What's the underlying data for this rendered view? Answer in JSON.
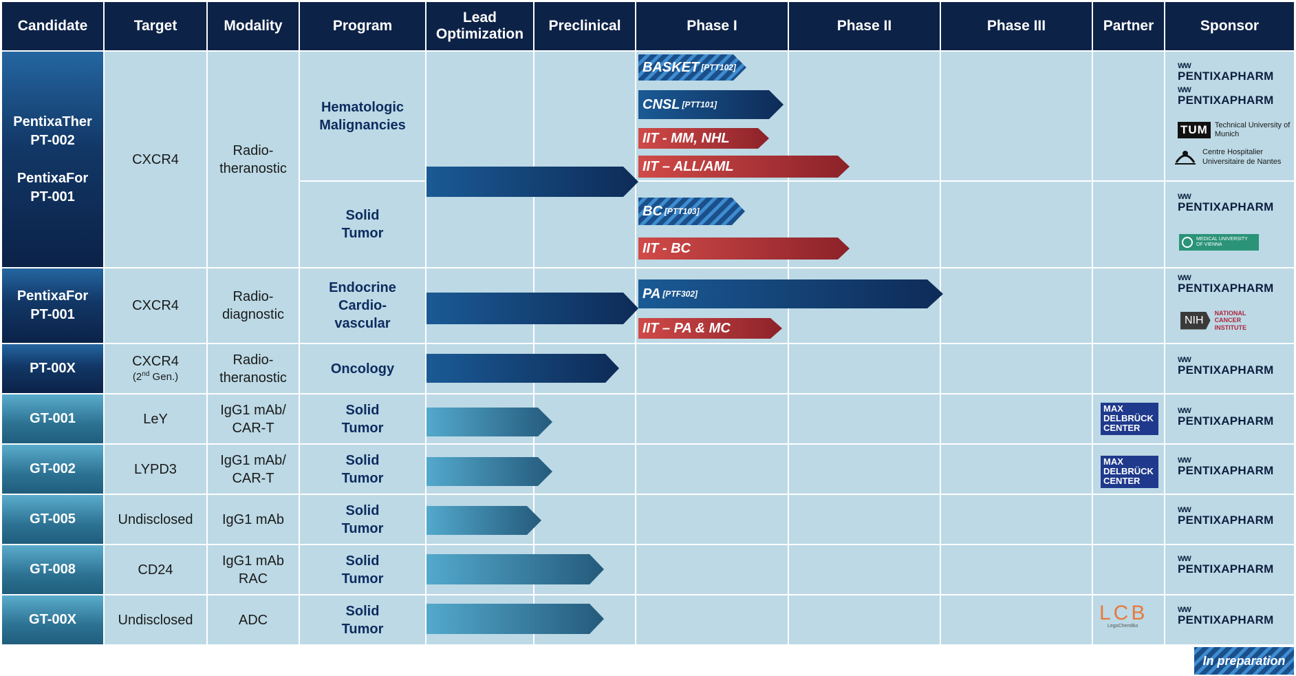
{
  "colors": {
    "header_bg": "#0d2247",
    "cell_bg": "#bcd9e5",
    "dark_bar": "#123e73",
    "light_bar": "#4ba5c8",
    "iit_red": "#b63336",
    "program_text": "#0d2b5e"
  },
  "headers": {
    "candidate": "Candidate",
    "target": "Target",
    "modality": "Modality",
    "program": "Program",
    "lead_opt_1": "Lead",
    "lead_opt_2": "Optimization",
    "preclinical": "Preclinical",
    "phase1": "Phase I",
    "phase2": "Phase II",
    "phase3": "Phase III",
    "partner": "Partner",
    "sponsor": "Sponsor"
  },
  "rows": {
    "r1": {
      "cand_a1": "PentixaTher",
      "cand_a2": "PT-002",
      "cand_b1": "PentixaFor",
      "cand_b2": "PT-001",
      "target": "CXCR4",
      "modality_1": "Radio-",
      "modality_2": "theranostic",
      "program_a1": "Hematologic",
      "program_a2": "Malignancies",
      "program_b1": "Solid",
      "program_b2": "Tumor"
    },
    "r2": {
      "cand_1": "PentixaFor",
      "cand_2": "PT-001",
      "target": "CXCR4",
      "modality_1": "Radio-",
      "modality_2": "diagnostic",
      "program_1": "Endocrine",
      "program_2": "Cardio-",
      "program_3": "vascular"
    },
    "r3": {
      "cand": "PT-00X",
      "target_1": "CXCR4",
      "target_2a": "(2",
      "target_2sup": "nd",
      "target_2b": " Gen.)",
      "modality_1": "Radio-",
      "modality_2": "theranostic",
      "program": "Oncology"
    },
    "r4": {
      "cand": "GT-001",
      "target": "LeY",
      "modality_1": "IgG1 mAb/",
      "modality_2": "CAR-T",
      "program_1": "Solid",
      "program_2": "Tumor"
    },
    "r5": {
      "cand": "GT-002",
      "target": "LYPD3",
      "modality_1": "IgG1 mAb/",
      "modality_2": "CAR-T",
      "program_1": "Solid",
      "program_2": "Tumor"
    },
    "r6": {
      "cand": "GT-005",
      "target": "Undisclosed",
      "modality_1": "IgG1 mAb",
      "program_1": "Solid",
      "program_2": "Tumor"
    },
    "r7": {
      "cand": "GT-008",
      "target": "CD24",
      "modality_1": "IgG1 mAb",
      "modality_2": "RAC",
      "program_1": "Solid",
      "program_2": "Tumor"
    },
    "r8": {
      "cand": "GT-00X",
      "target": "Undisclosed",
      "modality_1": "ADC",
      "program_1": "Solid",
      "program_2": "Tumor"
    }
  },
  "bars": [
    {
      "id": "basket",
      "label": "BASKET",
      "sup": "[PTT102]",
      "style": "hatched",
      "progress_phase": 1.7
    },
    {
      "id": "cnsl",
      "label": "CNSL",
      "sup": "[PTT101]",
      "style": "dark",
      "progress_phase": 2.0
    },
    {
      "id": "iit_mm",
      "label": "IIT  - MM, NHL",
      "sup": "",
      "style": "red",
      "progress_phase": 1.9
    },
    {
      "id": "iit_all",
      "label": "IIT – ALL/AML",
      "sup": "",
      "style": "red",
      "progress_phase": 2.4
    },
    {
      "id": "bc",
      "label": "BC",
      "sup": "[PTT103]",
      "style": "hatched",
      "progress_phase": 1.7
    },
    {
      "id": "iit_bc",
      "label": "IIT - BC",
      "sup": "",
      "style": "red",
      "progress_phase": 2.4
    },
    {
      "id": "pa",
      "label": "PA",
      "sup": "[PTF302]",
      "style": "dark",
      "progress_phase": 3.0
    },
    {
      "id": "iit_pa",
      "label": "IIT – PA & MC",
      "sup": "",
      "style": "red",
      "progress_phase": 2.0
    }
  ],
  "sponsors": {
    "pentixapharm": "PENTIXAPHARM",
    "pentixapharm_mark": "WW",
    "tum_name": "Technical University of Munich",
    "tum_logo": "TUM",
    "chu_name_1": "Centre Hospitalier",
    "chu_name_2": "Universitaire de Nantes",
    "muw_name": "MEDICAL UNIVERSITY OF VIENNA",
    "nih_logo": "NIH",
    "nci_1": "NATIONAL",
    "nci_2": "CANCER",
    "nci_3": "INSTITUTE"
  },
  "partners": {
    "mdc_1": "MAX",
    "mdc_2": "DELBRÜCK",
    "mdc_3": "CENTER",
    "lcb": "LCB",
    "lcb_sub": "LegoChemBio"
  },
  "legend": {
    "label": "In preparation"
  }
}
